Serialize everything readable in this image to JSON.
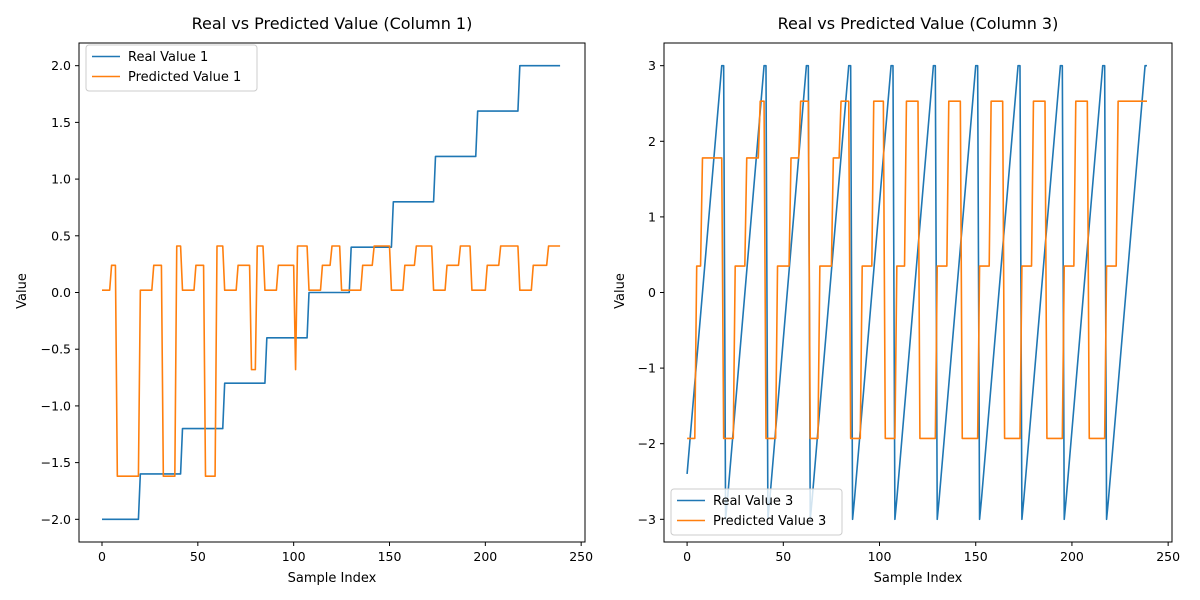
{
  "chart_data": [
    {
      "type": "line",
      "title": "Real vs Predicted Value (Column 1)",
      "xlabel": "Sample Index",
      "ylabel": "Value",
      "xlim": [
        -12,
        252
      ],
      "ylim": [
        -2.2,
        2.2
      ],
      "xticks": [
        0,
        50,
        100,
        150,
        200,
        250
      ],
      "yticks": [
        -2.0,
        -1.5,
        -1.0,
        -0.5,
        0.0,
        0.5,
        1.0,
        1.5,
        2.0
      ],
      "ytick_labels": [
        "−2.0",
        "−1.5",
        "−1.0",
        "−0.5",
        "0.0",
        "0.5",
        "1.0",
        "1.5",
        "2.0"
      ],
      "grid": false,
      "legend": "upper-left",
      "series": [
        {
          "name": "Real Value 1",
          "color": "#1f77b4",
          "x": [
            0,
            19,
            20,
            39,
            40,
            41,
            42,
            63,
            64,
            85,
            86,
            107,
            108,
            129,
            130,
            151,
            152,
            173,
            174,
            195,
            196,
            217,
            218,
            239
          ],
          "y": [
            -2.0,
            -2.0,
            -1.6,
            -1.6,
            -1.6,
            -1.6,
            -1.2,
            -1.2,
            -0.8,
            -0.8,
            -0.4,
            -0.4,
            0.0,
            0.0,
            0.4,
            0.4,
            0.8,
            0.8,
            1.2,
            1.2,
            1.6,
            1.6,
            2.0,
            2.0
          ]
        },
        {
          "name": "Predicted Value 1",
          "color": "#ff7f0e",
          "x": [
            0,
            4,
            5,
            7,
            8,
            19,
            20,
            26,
            27,
            31,
            32,
            38,
            39,
            41,
            42,
            48,
            49,
            53,
            54,
            59,
            60,
            63,
            64,
            70,
            71,
            77,
            78,
            80,
            81,
            84,
            85,
            91,
            92,
            100,
            101,
            102,
            107,
            108,
            114,
            115,
            119,
            120,
            124,
            125,
            128,
            129,
            130,
            135,
            136,
            141,
            142,
            145,
            146,
            150,
            151,
            157,
            158,
            163,
            164,
            167,
            168,
            172,
            173,
            179,
            180,
            186,
            187,
            192,
            193,
            200,
            201,
            207,
            208,
            213,
            214,
            217,
            218,
            224,
            225,
            232,
            233,
            239
          ],
          "y": [
            0.02,
            0.02,
            0.24,
            0.24,
            -1.62,
            -1.62,
            0.02,
            0.02,
            0.24,
            0.24,
            -1.62,
            -1.62,
            0.41,
            0.41,
            0.02,
            0.02,
            0.24,
            0.24,
            -1.62,
            -1.62,
            0.41,
            0.41,
            0.02,
            0.02,
            0.24,
            0.24,
            -0.68,
            -0.68,
            0.41,
            0.41,
            0.02,
            0.02,
            0.24,
            0.24,
            -0.68,
            0.41,
            0.41,
            0.02,
            0.02,
            0.24,
            0.24,
            0.41,
            0.41,
            0.02,
            0.02,
            0.02,
            0.02,
            0.02,
            0.24,
            0.24,
            0.41,
            0.41,
            0.41,
            0.41,
            0.02,
            0.02,
            0.24,
            0.24,
            0.41,
            0.41,
            0.41,
            0.41,
            0.02,
            0.02,
            0.24,
            0.24,
            0.41,
            0.41,
            0.02,
            0.02,
            0.24,
            0.24,
            0.41,
            0.41,
            0.41,
            0.41,
            0.02,
            0.02,
            0.24,
            0.24,
            0.41,
            0.41
          ]
        }
      ]
    },
    {
      "type": "line",
      "title": "Real vs Predicted Value (Column 3)",
      "xlabel": "Sample Index",
      "ylabel": "Value",
      "xlim": [
        -12,
        252
      ],
      "ylim": [
        -3.3,
        3.3
      ],
      "xticks": [
        0,
        50,
        100,
        150,
        200,
        250
      ],
      "yticks": [
        -3,
        -2,
        -1,
        0,
        1,
        2,
        3
      ],
      "ytick_labels": [
        "−3",
        "−2",
        "−1",
        "0",
        "1",
        "2",
        "3"
      ],
      "grid": false,
      "legend": "lower-left",
      "series": [
        {
          "name": "Real Value 3",
          "color": "#1f77b4",
          "x": [
            0,
            18,
            19,
            20,
            21,
            40,
            41,
            42,
            43,
            62,
            63,
            64,
            65,
            84,
            85,
            86,
            87,
            106,
            107,
            108,
            109,
            128,
            129,
            130,
            131,
            150,
            151,
            152,
            153,
            172,
            173,
            174,
            175,
            194,
            195,
            196,
            197,
            216,
            217,
            218,
            219,
            238,
            239
          ],
          "y": [
            -2.4,
            3.0,
            3.0,
            -3.0,
            -2.73,
            3.0,
            3.0,
            -3.0,
            -2.73,
            3.0,
            3.0,
            -3.0,
            -2.73,
            3.0,
            3.0,
            -3.0,
            -2.73,
            3.0,
            3.0,
            -3.0,
            -2.73,
            3.0,
            3.0,
            -3.0,
            -2.73,
            3.0,
            3.0,
            -3.0,
            -2.73,
            3.0,
            3.0,
            -3.0,
            -2.73,
            3.0,
            3.0,
            -3.0,
            -2.73,
            3.0,
            3.0,
            -3.0,
            -2.73,
            3.0,
            3.0
          ]
        },
        {
          "name": "Predicted Value 3",
          "color": "#ff7f0e",
          "x": [
            0,
            4,
            5,
            7,
            8,
            18,
            19,
            24,
            25,
            30,
            31,
            37,
            38,
            40,
            41,
            46,
            47,
            53,
            54,
            58,
            59,
            63,
            64,
            68,
            69,
            75,
            76,
            79,
            80,
            84,
            85,
            90,
            91,
            96,
            97,
            102,
            103,
            108,
            109,
            113,
            114,
            120,
            121,
            129,
            130,
            135,
            136,
            142,
            143,
            151,
            152,
            157,
            158,
            164,
            165,
            173,
            174,
            179,
            180,
            186,
            187,
            195,
            196,
            201,
            202,
            208,
            209,
            217,
            218,
            223,
            224,
            231,
            232,
            239
          ],
          "y": [
            -1.93,
            -1.93,
            0.35,
            0.35,
            1.78,
            1.78,
            -1.93,
            -1.93,
            0.35,
            0.35,
            1.78,
            1.78,
            2.53,
            2.53,
            -1.93,
            -1.93,
            0.35,
            0.35,
            1.78,
            1.78,
            2.53,
            2.53,
            -1.93,
            -1.93,
            0.35,
            0.35,
            1.78,
            1.78,
            2.53,
            2.53,
            -1.93,
            -1.93,
            0.35,
            0.35,
            2.53,
            2.53,
            -1.93,
            -1.93,
            0.35,
            0.35,
            2.53,
            2.53,
            -1.93,
            -1.93,
            0.35,
            0.35,
            2.53,
            2.53,
            -1.93,
            -1.93,
            0.35,
            0.35,
            2.53,
            2.53,
            -1.93,
            -1.93,
            0.35,
            0.35,
            2.53,
            2.53,
            -1.93,
            -1.93,
            0.35,
            0.35,
            2.53,
            2.53,
            -1.93,
            -1.93,
            0.35,
            0.35,
            2.53,
            2.53,
            2.53,
            2.53
          ]
        }
      ]
    }
  ]
}
